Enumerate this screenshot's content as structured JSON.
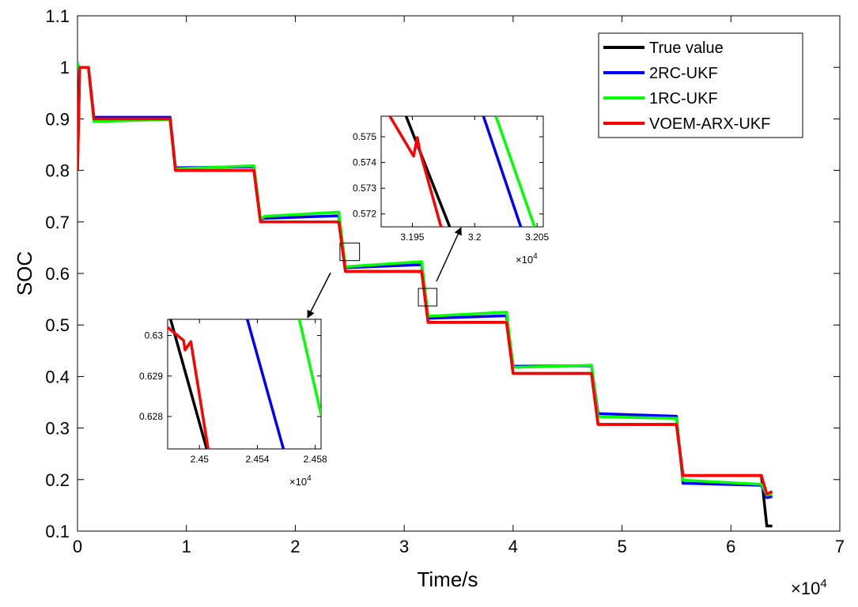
{
  "chart_data": {
    "type": "line",
    "title": "",
    "xlabel": "Time/s",
    "ylabel": "SOC",
    "x_multiplier_label": "×10",
    "x_multiplier_exp": "4",
    "xlim": [
      0,
      7
    ],
    "ylim": [
      0.1,
      1.1
    ],
    "xticks": [
      0,
      1,
      2,
      3,
      4,
      5,
      6,
      7
    ],
    "yticks": [
      0.1,
      0.2,
      0.3,
      0.4,
      0.5,
      0.6,
      0.7,
      0.8,
      0.9,
      1,
      1.1
    ],
    "xtick_labels": [
      "0",
      "1",
      "2",
      "3",
      "4",
      "5",
      "6",
      "7"
    ],
    "ytick_labels": [
      "0.1",
      "0.2",
      "0.3",
      "0.4",
      "0.5",
      "0.6",
      "0.7",
      "0.8",
      "0.9",
      "1",
      "1.1"
    ],
    "grid": false,
    "legend_position": "top-right",
    "series": [
      {
        "name": "True value",
        "color": "#000000",
        "points": [
          [
            0,
            0.8
          ],
          [
            0.02,
            1.0
          ],
          [
            0.1,
            1.0
          ],
          [
            0.15,
            0.9
          ],
          [
            0.85,
            0.9
          ],
          [
            0.9,
            0.8
          ],
          [
            1.62,
            0.8
          ],
          [
            1.68,
            0.7
          ],
          [
            2.4,
            0.7
          ],
          [
            2.46,
            0.604
          ],
          [
            3.16,
            0.604
          ],
          [
            3.22,
            0.505
          ],
          [
            3.94,
            0.505
          ],
          [
            4.0,
            0.406
          ],
          [
            4.72,
            0.406
          ],
          [
            4.78,
            0.307
          ],
          [
            5.5,
            0.307
          ],
          [
            5.56,
            0.208
          ],
          [
            6.28,
            0.208
          ],
          [
            6.33,
            0.11
          ],
          [
            6.38,
            0.11
          ]
        ]
      },
      {
        "name": "2RC-UKF",
        "color": "#0000ff",
        "points": [
          [
            0,
            1.01
          ],
          [
            0.01,
            1.0
          ],
          [
            0.1,
            1.0
          ],
          [
            0.15,
            0.903
          ],
          [
            0.85,
            0.903
          ],
          [
            0.9,
            0.805
          ],
          [
            1.62,
            0.807
          ],
          [
            1.68,
            0.705
          ],
          [
            1.72,
            0.707
          ],
          [
            2.4,
            0.712
          ],
          [
            2.46,
            0.611
          ],
          [
            3.16,
            0.617
          ],
          [
            3.22,
            0.513
          ],
          [
            3.94,
            0.518
          ],
          [
            4.0,
            0.42
          ],
          [
            4.72,
            0.421
          ],
          [
            4.78,
            0.328
          ],
          [
            5.5,
            0.323
          ],
          [
            5.56,
            0.193
          ],
          [
            6.28,
            0.189
          ],
          [
            6.33,
            0.165
          ],
          [
            6.38,
            0.167
          ]
        ]
      },
      {
        "name": "1RC-UKF",
        "color": "#00ff00",
        "points": [
          [
            0,
            1.01
          ],
          [
            0.01,
            1.0
          ],
          [
            0.1,
            1.0
          ],
          [
            0.15,
            0.895
          ],
          [
            0.85,
            0.899
          ],
          [
            0.9,
            0.803
          ],
          [
            1.62,
            0.809
          ],
          [
            1.68,
            0.705
          ],
          [
            1.72,
            0.711
          ],
          [
            2.4,
            0.719
          ],
          [
            2.46,
            0.613
          ],
          [
            3.16,
            0.623
          ],
          [
            3.22,
            0.517
          ],
          [
            3.94,
            0.525
          ],
          [
            4.0,
            0.418
          ],
          [
            4.72,
            0.422
          ],
          [
            4.78,
            0.322
          ],
          [
            5.5,
            0.319
          ],
          [
            5.56,
            0.199
          ],
          [
            6.28,
            0.191
          ],
          [
            6.33,
            0.17
          ],
          [
            6.38,
            0.173
          ]
        ]
      },
      {
        "name": "VOEM-ARX-UKF",
        "color": "#ff0000",
        "points": [
          [
            0,
            0.8
          ],
          [
            0.02,
            1.0
          ],
          [
            0.1,
            1.0
          ],
          [
            0.15,
            0.9
          ],
          [
            0.85,
            0.9
          ],
          [
            0.9,
            0.8
          ],
          [
            1.62,
            0.8
          ],
          [
            1.68,
            0.7
          ],
          [
            2.4,
            0.7
          ],
          [
            2.46,
            0.604
          ],
          [
            3.16,
            0.604
          ],
          [
            3.22,
            0.505
          ],
          [
            3.94,
            0.505
          ],
          [
            4.0,
            0.406
          ],
          [
            4.72,
            0.406
          ],
          [
            4.78,
            0.307
          ],
          [
            5.5,
            0.307
          ],
          [
            5.56,
            0.208
          ],
          [
            6.28,
            0.208
          ],
          [
            6.33,
            0.172
          ],
          [
            6.38,
            0.177
          ]
        ]
      }
    ],
    "zoom_boxes": [
      {
        "xlim": [
          2.41,
          2.59
        ],
        "ylim": [
          0.625,
          0.659
        ]
      },
      {
        "xlim": [
          3.13,
          3.3
        ],
        "ylim": [
          0.537,
          0.571
        ]
      }
    ],
    "insets": [
      {
        "name": "inset-lower",
        "xlim": [
          2.4478,
          2.4584
        ],
        "ylim": [
          0.6272,
          0.6304
        ],
        "xticks": [
          2.45,
          2.454,
          2.458
        ],
        "xtick_labels": [
          "2.45",
          "2.454",
          "2.458"
        ],
        "yticks": [
          0.628,
          0.629,
          0.63
        ],
        "ytick_labels": [
          "0.628",
          "0.629",
          "0.63"
        ],
        "x_multiplier_label": "×10",
        "x_multiplier_exp": "4",
        "series": [
          {
            "name": "True value",
            "color": "#000000",
            "points": [
              [
                2.448,
                0.6304
              ],
              [
                2.4505,
                0.6272
              ]
            ]
          },
          {
            "name": "2RC-UKF",
            "color": "#0000ff",
            "points": [
              [
                2.4533,
                0.6304
              ],
              [
                2.4558,
                0.6272
              ]
            ]
          },
          {
            "name": "1RC-UKF",
            "color": "#00ff00",
            "points": [
              [
                2.4569,
                0.6304
              ],
              [
                2.4584,
                0.62805
              ]
            ]
          },
          {
            "name": "VOEM-ARX-UKF",
            "color": "#ff0000",
            "points": [
              [
                2.4478,
                0.6302
              ],
              [
                2.4489,
                0.62988
              ],
              [
                2.449,
                0.62964
              ],
              [
                2.4494,
                0.62985
              ],
              [
                2.4506,
                0.6272
              ]
            ]
          }
        ]
      },
      {
        "name": "inset-upper",
        "xlim": [
          3.1925,
          3.2055
        ],
        "ylim": [
          0.5715,
          0.5758
        ],
        "xticks": [
          3.195,
          3.2,
          3.205
        ],
        "xtick_labels": [
          "3.195",
          "3.2",
          "3.205"
        ],
        "yticks": [
          0.572,
          0.573,
          0.574,
          0.575
        ],
        "ytick_labels": [
          "0.572",
          "0.573",
          "0.574",
          "0.575"
        ],
        "x_multiplier_label": "×10",
        "x_multiplier_exp": "4",
        "series": [
          {
            "name": "True value",
            "color": "#000000",
            "points": [
              [
                3.1945,
                0.5758
              ],
              [
                3.198,
                0.5715
              ]
            ]
          },
          {
            "name": "2RC-UKF",
            "color": "#0000ff",
            "points": [
              [
                3.2007,
                0.5758
              ],
              [
                3.2037,
                0.5715
              ]
            ]
          },
          {
            "name": "1RC-UKF",
            "color": "#00ff00",
            "points": [
              [
                3.2017,
                0.5758
              ],
              [
                3.2048,
                0.5715
              ]
            ]
          },
          {
            "name": "VOEM-ARX-UKF",
            "color": "#ff0000",
            "points": [
              [
                3.1932,
                0.5758
              ],
              [
                3.1951,
                0.57425
              ],
              [
                3.1954,
                0.57497
              ],
              [
                3.1956,
                0.57445
              ],
              [
                3.1973,
                0.5715
              ]
            ]
          }
        ]
      }
    ]
  }
}
